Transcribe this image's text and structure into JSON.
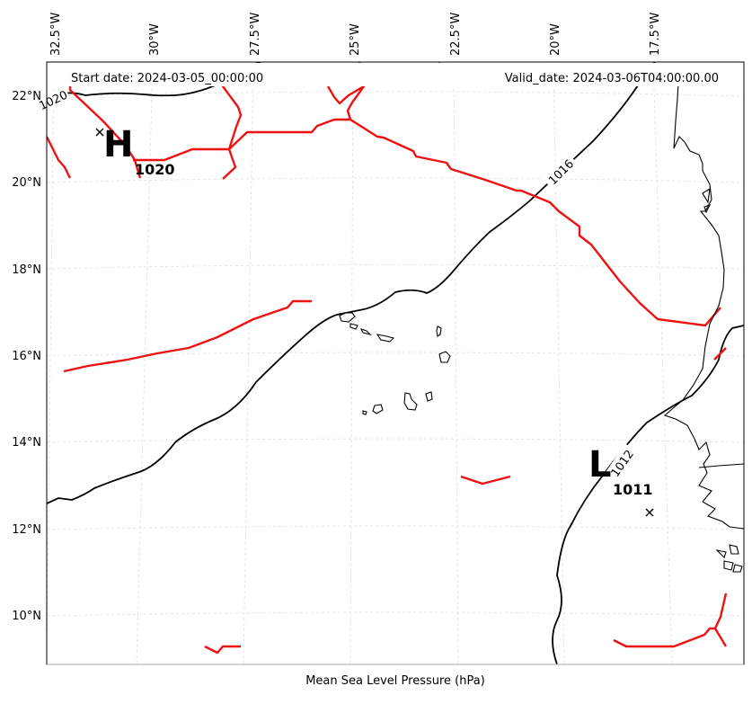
{
  "header": {
    "start_date": "Start date: 2024-03-05_00:00:00",
    "valid_date": "Valid_date: 2024-03-06T04:00:00.00"
  },
  "xlabel": "Mean Sea Level Pressure (hPa)",
  "lon_ticks": [
    "32.5°W",
    "30°W",
    "27.5°W",
    "25°W",
    "22.5°W",
    "20°W",
    "17.5°W"
  ],
  "lat_ticks": [
    "22°N",
    "20°N",
    "18°N",
    "16°N",
    "14°N",
    "12°N",
    "10°N"
  ],
  "isobar_labels": [
    "1020",
    "1016",
    "1012"
  ],
  "pressure_centers": [
    {
      "letter": "H",
      "value": "1020",
      "kind": "high"
    },
    {
      "letter": "L",
      "value": "1011",
      "kind": "low"
    }
  ],
  "colors": {
    "isobar": "#000000",
    "front": "#ee1111",
    "grid": "#dddddd"
  }
}
